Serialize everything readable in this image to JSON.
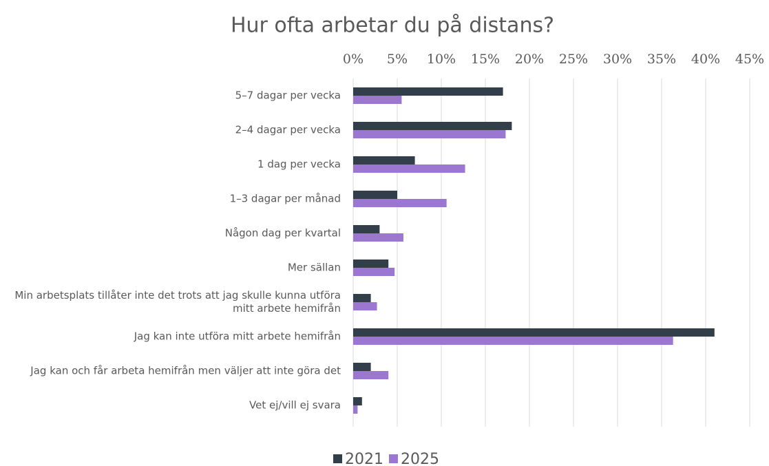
{
  "chart_data": {
    "type": "barh",
    "title": "Hur ofta arbetar du på distans?",
    "categories": [
      "5–7 dagar per vecka",
      "2–4 dagar per vecka",
      "1 dag per vecka",
      "1–3 dagar per månad",
      "Någon dag per kvartal",
      "Mer sällan",
      "Min arbetsplats tillåter inte det trots att jag skulle kunna utföra mitt arbete hemifrån",
      "Jag kan inte utföra mitt arbete hemifrån",
      "Jag kan och får arbeta hemifrån men väljer att inte göra det",
      "Vet ej/vill ej svara"
    ],
    "series": [
      {
        "name": "2021",
        "color": "#323f4a",
        "values": [
          17,
          18,
          7,
          5,
          3,
          4,
          2,
          41,
          2,
          1
        ]
      },
      {
        "name": "2025",
        "color": "#9b77d1",
        "values": [
          5.5,
          17.3,
          12.7,
          10.6,
          5.7,
          4.7,
          2.7,
          36.3,
          4,
          0.5
        ]
      }
    ],
    "xlim": [
      0,
      45
    ],
    "xticks": [
      {
        "value": 0,
        "label": "0%"
      },
      {
        "value": 5,
        "label": "5%"
      },
      {
        "value": 10,
        "label": "10%"
      },
      {
        "value": 15,
        "label": "15%"
      },
      {
        "value": 20,
        "label": "20%"
      },
      {
        "value": 25,
        "label": "25%"
      },
      {
        "value": 30,
        "label": "30%"
      },
      {
        "value": 35,
        "label": "35%"
      },
      {
        "value": 40,
        "label": "40%"
      },
      {
        "value": 45,
        "label": "45%"
      }
    ],
    "grid": true,
    "legend": "bottom"
  }
}
